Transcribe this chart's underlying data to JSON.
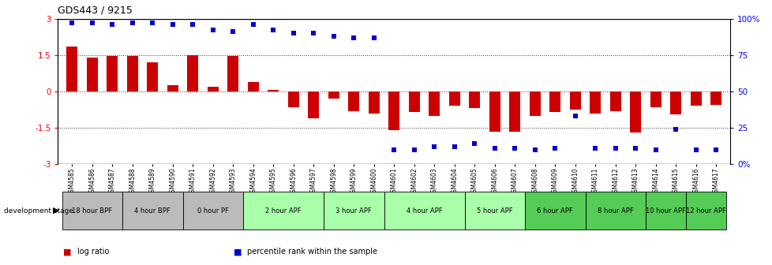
{
  "title": "GDS443 / 9215",
  "samples": [
    "GSM4585",
    "GSM4586",
    "GSM4587",
    "GSM4588",
    "GSM4589",
    "GSM4590",
    "GSM4591",
    "GSM4592",
    "GSM4593",
    "GSM4594",
    "GSM4595",
    "GSM4596",
    "GSM4597",
    "GSM4598",
    "GSM4599",
    "GSM4600",
    "GSM4601",
    "GSM4602",
    "GSM4603",
    "GSM4604",
    "GSM4605",
    "GSM4606",
    "GSM4607",
    "GSM4608",
    "GSM4609",
    "GSM4610",
    "GSM4611",
    "GSM4612",
    "GSM4613",
    "GSM4614",
    "GSM4615",
    "GSM4616",
    "GSM4617"
  ],
  "log_ratio": [
    1.85,
    1.4,
    1.45,
    1.45,
    1.2,
    0.25,
    1.5,
    0.2,
    1.45,
    0.4,
    0.05,
    -0.65,
    -1.1,
    -0.3,
    -0.8,
    -0.9,
    -1.6,
    -0.85,
    -1.0,
    -0.6,
    -0.7,
    -1.65,
    -1.65,
    -1.0,
    -0.85,
    -0.75,
    -0.9,
    -0.8,
    -1.7,
    -0.65,
    -0.95,
    -0.6,
    -0.55
  ],
  "percentile": [
    97,
    97,
    96,
    97,
    97,
    96,
    96,
    92,
    91,
    96,
    92,
    90,
    90,
    88,
    87,
    87,
    10,
    10,
    12,
    12,
    14,
    11,
    11,
    10,
    11,
    33,
    11,
    11,
    11,
    10,
    24,
    10,
    10
  ],
  "bar_color": "#cc0000",
  "point_color": "#0000cc",
  "ylim_left": [
    -3,
    3
  ],
  "ylim_right": [
    0,
    100
  ],
  "yticks_left": [
    -3,
    -1.5,
    0,
    1.5,
    3
  ],
  "ytick_labels_left": [
    "-3",
    "-1.5",
    "0",
    "1.5",
    "3"
  ],
  "yticks_right": [
    0,
    25,
    50,
    75,
    100
  ],
  "ytick_labels_right": [
    "0%",
    "25",
    "50",
    "75",
    "100%"
  ],
  "zero_line_color": "#cc0000",
  "dotted_color": "#333333",
  "stages": [
    {
      "label": "18 hour BPF",
      "start": 0,
      "end": 2,
      "color": "#bbbbbb"
    },
    {
      "label": "4 hour BPF",
      "start": 3,
      "end": 5,
      "color": "#bbbbbb"
    },
    {
      "label": "0 hour PF",
      "start": 6,
      "end": 8,
      "color": "#bbbbbb"
    },
    {
      "label": "2 hour APF",
      "start": 9,
      "end": 12,
      "color": "#aaffaa"
    },
    {
      "label": "3 hour APF",
      "start": 13,
      "end": 15,
      "color": "#aaffaa"
    },
    {
      "label": "4 hour APF",
      "start": 16,
      "end": 19,
      "color": "#aaffaa"
    },
    {
      "label": "5 hour APF",
      "start": 20,
      "end": 22,
      "color": "#aaffaa"
    },
    {
      "label": "6 hour APF",
      "start": 23,
      "end": 25,
      "color": "#55cc55"
    },
    {
      "label": "8 hour APF",
      "start": 26,
      "end": 28,
      "color": "#55cc55"
    },
    {
      "label": "10 hour APF",
      "start": 29,
      "end": 30,
      "color": "#55cc55"
    },
    {
      "label": "12 hour APF",
      "start": 31,
      "end": 32,
      "color": "#55cc55"
    }
  ],
  "legend_items": [
    {
      "label": "log ratio",
      "color": "#cc0000"
    },
    {
      "label": "percentile rank within the sample",
      "color": "#0000cc"
    }
  ]
}
